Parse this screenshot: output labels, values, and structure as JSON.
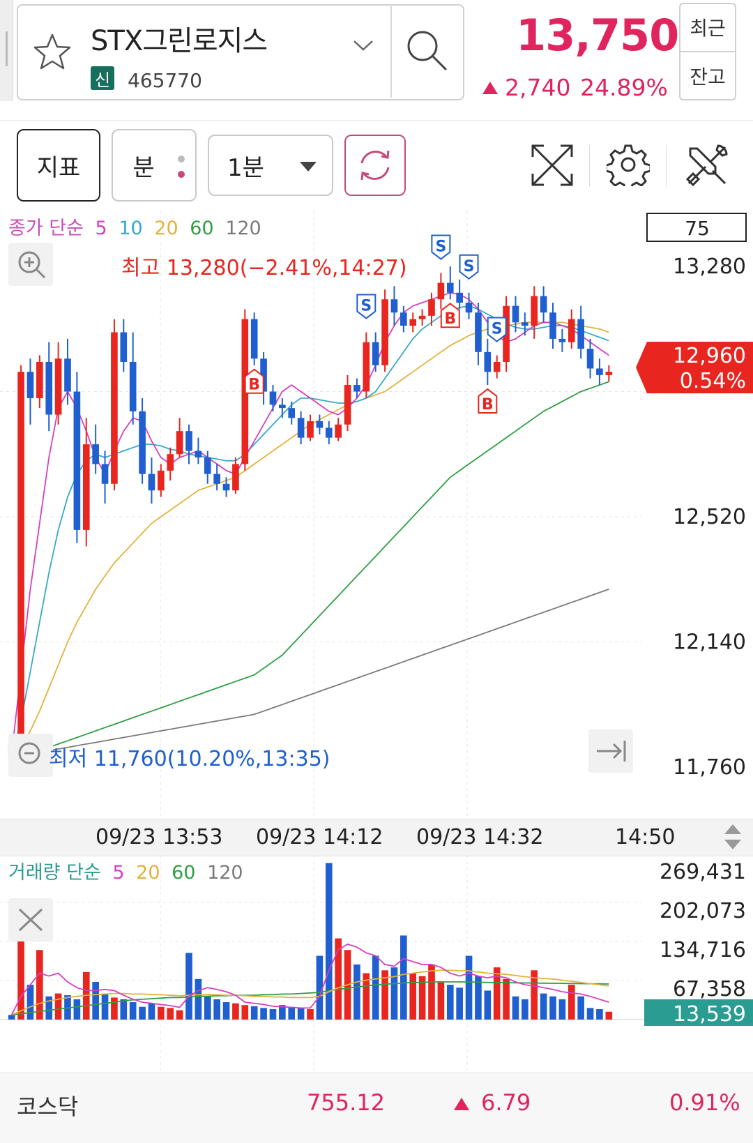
{
  "stock": {
    "name": "STX그린로지스",
    "market_badge": "신",
    "code": "465770",
    "price": "13,750",
    "change": "2,740",
    "change_rate": "24.89%",
    "recent_label": "최근",
    "balance_label": "잔고"
  },
  "toolbar": {
    "indicator_label": "지표",
    "minute_label": "분",
    "interval": "1분"
  },
  "colors": {
    "up": "#e0245e",
    "candle_up": "#e8251e",
    "candle_down": "#1f5fd0",
    "ma5": "#d63fc0",
    "ma10": "#35a9c9",
    "ma20": "#e3b23c",
    "ma60": "#2f9e44",
    "ma120": "#7a7a7a",
    "volume_last_bg": "#2a9c92"
  },
  "price_chart_legend": {
    "prefix": "종가 단순",
    "ma5": "5",
    "ma10": "10",
    "ma20": "20",
    "ma60": "60",
    "ma120": "120",
    "badge": "75"
  },
  "volume_chart_legend": {
    "prefix": "거래량 단순",
    "ma5": "5",
    "ma20": "20",
    "ma60": "60",
    "ma120": "120"
  },
  "chart_data": [
    {
      "type": "candlestick",
      "y_ticks": [
        "13,280",
        "12,520",
        "12,140",
        "11,760"
      ],
      "ylim": [
        11760,
        13280
      ],
      "high_label": "최고 13,280(−2.41%,14:27)",
      "low_label": "최저 11,760(10.20%,13:35)",
      "current_price_tag": "12,960",
      "current_rate_tag": "0.54%",
      "x_tick_labels": [
        "09/23 13:53",
        "09/23 14:12",
        "09/23 14:32",
        "14:50"
      ],
      "signals": [
        {
          "type": "B",
          "idx": 26
        },
        {
          "type": "S",
          "idx": 38
        },
        {
          "type": "S",
          "idx": 46
        },
        {
          "type": "B",
          "idx": 47
        },
        {
          "type": "S",
          "idx": 49
        },
        {
          "type": "B",
          "idx": 51
        },
        {
          "type": "S",
          "idx": 52
        }
      ],
      "candles": [
        [
          11830,
          11790,
          11840,
          11760
        ],
        [
          11800,
          12960,
          12980,
          11780
        ],
        [
          12960,
          12880,
          13000,
          12800
        ],
        [
          12880,
          12990,
          13010,
          12850
        ],
        [
          12990,
          12830,
          13050,
          12780
        ],
        [
          12830,
          13000,
          13050,
          12800
        ],
        [
          13000,
          12900,
          13060,
          12860
        ],
        [
          12900,
          12480,
          12960,
          12440
        ],
        [
          12480,
          12740,
          12820,
          12430
        ],
        [
          12740,
          12680,
          12800,
          12650
        ],
        [
          12680,
          12620,
          12720,
          12560
        ],
        [
          12620,
          13080,
          13120,
          12600
        ],
        [
          13080,
          12990,
          13120,
          12960
        ],
        [
          12990,
          12840,
          13080,
          12800
        ],
        [
          12840,
          12650,
          12880,
          12620
        ],
        [
          12650,
          12600,
          12700,
          12560
        ],
        [
          12600,
          12660,
          12680,
          12580
        ],
        [
          12660,
          12710,
          12730,
          12630
        ],
        [
          12710,
          12780,
          12820,
          12700
        ],
        [
          12780,
          12720,
          12800,
          12680
        ],
        [
          12720,
          12700,
          12760,
          12680
        ],
        [
          12700,
          12650,
          12720,
          12620
        ],
        [
          12650,
          12620,
          12680,
          12600
        ],
        [
          12620,
          12600,
          12640,
          12580
        ],
        [
          12600,
          12680,
          12700,
          12590
        ],
        [
          12680,
          13120,
          13150,
          12660
        ],
        [
          13120,
          13000,
          13140,
          12980
        ],
        [
          13000,
          12900,
          13020,
          12860
        ],
        [
          12900,
          12860,
          12920,
          12840
        ],
        [
          12860,
          12850,
          12880,
          12820
        ],
        [
          12850,
          12820,
          12870,
          12800
        ],
        [
          12820,
          12760,
          12840,
          12740
        ],
        [
          12760,
          12810,
          12830,
          12750
        ],
        [
          12810,
          12790,
          12830,
          12770
        ],
        [
          12790,
          12760,
          12810,
          12740
        ],
        [
          12760,
          12800,
          12820,
          12750
        ],
        [
          12800,
          12920,
          12950,
          12780
        ],
        [
          12920,
          12900,
          12940,
          12880
        ],
        [
          12900,
          13050,
          13080,
          12880
        ],
        [
          13050,
          12980,
          13080,
          12960
        ],
        [
          12980,
          13180,
          13210,
          12960
        ],
        [
          13180,
          13140,
          13220,
          13100
        ],
        [
          13140,
          13100,
          13160,
          13080
        ],
        [
          13100,
          13120,
          13140,
          13080
        ],
        [
          13120,
          13130,
          13150,
          13100
        ],
        [
          13130,
          13180,
          13200,
          13100
        ],
        [
          13180,
          13230,
          13260,
          13150
        ],
        [
          13230,
          13200,
          13280,
          13180
        ],
        [
          13200,
          13170,
          13240,
          13150
        ],
        [
          13170,
          13140,
          13200,
          13120
        ],
        [
          13140,
          13020,
          13170,
          12980
        ],
        [
          13020,
          12960,
          13060,
          12920
        ],
        [
          12960,
          12990,
          13010,
          12940
        ],
        [
          12990,
          13160,
          13190,
          12960
        ],
        [
          13160,
          13110,
          13190,
          13080
        ],
        [
          13110,
          13100,
          13140,
          13070
        ],
        [
          13100,
          13190,
          13220,
          13060
        ],
        [
          13190,
          13140,
          13220,
          13110
        ],
        [
          13140,
          13060,
          13170,
          13030
        ],
        [
          13060,
          13050,
          13090,
          13020
        ],
        [
          13050,
          13120,
          13150,
          13030
        ],
        [
          13120,
          13030,
          13160,
          13000
        ],
        [
          13030,
          12970,
          13060,
          12940
        ],
        [
          12970,
          12950,
          13000,
          12920
        ],
        [
          12950,
          12960,
          12980,
          12930
        ]
      ],
      "ma5": [
        11800,
        12050,
        12300,
        12500,
        12700,
        12850,
        12900,
        12850,
        12780,
        12700,
        12650,
        12720,
        12780,
        12820,
        12810,
        12750,
        12700,
        12680,
        12700,
        12710,
        12720,
        12700,
        12680,
        12660,
        12650,
        12700,
        12750,
        12800,
        12850,
        12900,
        12920,
        12900,
        12880,
        12860,
        12840,
        12830,
        12850,
        12880,
        12920,
        12980,
        13050,
        13100,
        13140,
        13160,
        13170,
        13180,
        13190,
        13200,
        13195,
        13180,
        13150,
        13110,
        13070,
        13050,
        13060,
        13080,
        13100,
        13110,
        13110,
        13100,
        13090,
        13070,
        13050,
        13030,
        13010
      ],
      "ma10": [
        11800,
        11900,
        12050,
        12200,
        12350,
        12480,
        12580,
        12650,
        12690,
        12710,
        12700,
        12710,
        12720,
        12730,
        12740,
        12740,
        12735,
        12725,
        12720,
        12710,
        12705,
        12700,
        12695,
        12690,
        12690,
        12710,
        12740,
        12770,
        12800,
        12830,
        12860,
        12880,
        12880,
        12875,
        12870,
        12865,
        12865,
        12870,
        12880,
        12900,
        12940,
        12980,
        13020,
        13060,
        13090,
        13110,
        13130,
        13145,
        13155,
        13160,
        13150,
        13135,
        13120,
        13105,
        13095,
        13090,
        13090,
        13095,
        13100,
        13100,
        13095,
        13085,
        13075,
        13065,
        13055
      ],
      "ma20": [
        11790,
        11820,
        11870,
        11930,
        12000,
        12070,
        12140,
        12200,
        12250,
        12300,
        12340,
        12380,
        12410,
        12440,
        12470,
        12500,
        12520,
        12540,
        12560,
        12580,
        12600,
        12610,
        12620,
        12630,
        12640,
        12660,
        12680,
        12700,
        12720,
        12740,
        12760,
        12780,
        12800,
        12815,
        12830,
        12845,
        12860,
        12870,
        12880,
        12890,
        12900,
        12920,
        12940,
        12960,
        12980,
        13000,
        13020,
        13040,
        13055,
        13070,
        13080,
        13090,
        13095,
        13100,
        13105,
        13110,
        13110,
        13110,
        13110,
        13110,
        13105,
        13100,
        13095,
        13090,
        13080
      ],
      "ma60": [
        11790,
        11795,
        11800,
        11810,
        11820,
        11830,
        11840,
        11850,
        11860,
        11870,
        11880,
        11890,
        11900,
        11910,
        11920,
        11930,
        11940,
        11950,
        11960,
        11970,
        11980,
        11990,
        12000,
        12010,
        12020,
        12030,
        12040,
        12060,
        12080,
        12100,
        12130,
        12160,
        12190,
        12220,
        12250,
        12280,
        12310,
        12340,
        12370,
        12400,
        12430,
        12460,
        12490,
        12520,
        12550,
        12580,
        12610,
        12640,
        12660,
        12680,
        12700,
        12720,
        12740,
        12760,
        12780,
        12800,
        12820,
        12840,
        12855,
        12870,
        12885,
        12900,
        12910,
        12920,
        12930
      ],
      "ma120": [
        11800,
        11802,
        11805,
        11808,
        11810,
        11815,
        11820,
        11825,
        11830,
        11835,
        11840,
        11845,
        11850,
        11855,
        11860,
        11865,
        11870,
        11875,
        11880,
        11885,
        11890,
        11895,
        11900,
        11905,
        11910,
        11915,
        11920,
        11930,
        11940,
        11950,
        11960,
        11970,
        11980,
        11990,
        12000,
        12010,
        12020,
        12030,
        12040,
        12050,
        12060,
        12070,
        12080,
        12090,
        12100,
        12110,
        12120,
        12130,
        12140,
        12150,
        12160,
        12170,
        12180,
        12190,
        12200,
        12210,
        12220,
        12230,
        12240,
        12250,
        12260,
        12270,
        12280,
        12290,
        12300
      ]
    },
    {
      "type": "bar",
      "y_ticks": [
        "269,431",
        "202,073",
        "134,716",
        "67,358"
      ],
      "ylim": [
        0,
        269431
      ],
      "current_volume_tag": "13,539",
      "volumes": [
        8000,
        155000,
        60000,
        120000,
        40000,
        45000,
        42000,
        35000,
        82000,
        65000,
        45000,
        38000,
        35000,
        30000,
        22000,
        28000,
        22000,
        20000,
        16000,
        115000,
        70000,
        40000,
        35000,
        30000,
        28000,
        25000,
        23000,
        20000,
        18000,
        25000,
        22000,
        20000,
        18000,
        110000,
        270000,
        140000,
        120000,
        95000,
        80000,
        110000,
        85000,
        90000,
        145000,
        80000,
        75000,
        95000,
        65000,
        60000,
        55000,
        110000,
        75000,
        50000,
        90000,
        70000,
        40000,
        35000,
        85000,
        45000,
        40000,
        35000,
        60000,
        40000,
        20000,
        18000,
        13539
      ],
      "ma5": [
        8000,
        40000,
        60000,
        80000,
        75000,
        80000,
        65000,
        55000,
        50000,
        50000,
        52000,
        50000,
        42000,
        35000,
        30000,
        28000,
        26000,
        24000,
        21000,
        40000,
        50000,
        55000,
        52000,
        48000,
        42000,
        30000,
        28000,
        26000,
        23000,
        22000,
        21000,
        20000,
        20000,
        40000,
        85000,
        120000,
        130000,
        125000,
        115000,
        110000,
        95000,
        92000,
        105000,
        100000,
        95000,
        95000,
        90000,
        80000,
        75000,
        80000,
        75000,
        72000,
        75000,
        72000,
        65000,
        60000,
        58000,
        55000,
        52000,
        48000,
        46000,
        44000,
        40000,
        35000,
        30000
      ],
      "ma20": [
        8000,
        15000,
        22000,
        28000,
        32000,
        35000,
        38000,
        40000,
        42000,
        43000,
        44000,
        45000,
        45000,
        44000,
        44000,
        43000,
        43000,
        42000,
        41000,
        42000,
        43000,
        43000,
        43000,
        42000,
        42000,
        41000,
        40000,
        40000,
        39000,
        39000,
        38000,
        38000,
        38000,
        40000,
        48000,
        55000,
        60000,
        65000,
        68000,
        70000,
        72000,
        74000,
        78000,
        80000,
        82000,
        84000,
        85000,
        85000,
        84000,
        84000,
        82000,
        80000,
        79000,
        78000,
        76000,
        74000,
        72000,
        71000,
        70000,
        68000,
        66000,
        64000,
        62000,
        60000,
        58000
      ],
      "ma60": [
        8000,
        10000,
        12000,
        14000,
        16000,
        18000,
        20000,
        22000,
        24000,
        26000,
        28000,
        30000,
        32000,
        34000,
        35000,
        36000,
        37000,
        38000,
        38000,
        39000,
        40000,
        40000,
        41000,
        41000,
        42000,
        42000,
        42000,
        43000,
        43000,
        44000,
        44000,
        45000,
        46000,
        47000,
        50000,
        52000,
        54000,
        56000,
        58000,
        60000,
        61000,
        62000,
        63000,
        64000,
        64000,
        65000,
        65000,
        65000,
        65000,
        65000,
        64500,
        64000,
        63800,
        63600,
        63400,
        63200,
        63000,
        62800,
        62600,
        62400,
        62200,
        62000,
        61800,
        61600,
        61400
      ]
    }
  ],
  "index": {
    "name": "코스닥",
    "value": "755.12",
    "change": "6.79",
    "rate": "0.91%"
  }
}
